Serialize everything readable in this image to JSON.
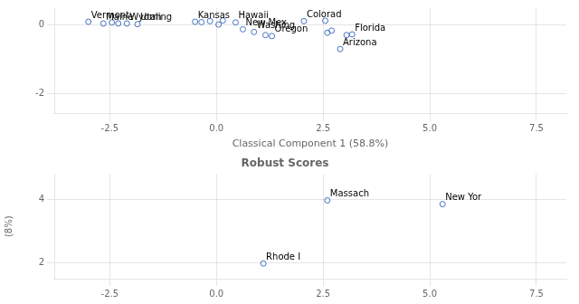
{
  "chart_data": [
    {
      "type": "scatter",
      "xlabel": "Classical Component 1 (58.8%)",
      "x": [
        -3.0,
        -2.65,
        -2.45,
        -2.3,
        -2.1,
        -1.85,
        -0.5,
        -0.15,
        0.15,
        0.45,
        0.62,
        0.88,
        1.15,
        1.3,
        2.05,
        2.6,
        2.7,
        3.05,
        3.18,
        2.9,
        2.55,
        -0.35,
        0.05
      ],
      "values": [
        0.1,
        0.05,
        0.08,
        0.05,
        0.05,
        0.03,
        0.1,
        0.12,
        0.14,
        0.08,
        -0.12,
        -0.2,
        -0.29,
        -0.32,
        0.12,
        -0.22,
        -0.16,
        -0.29,
        -0.27,
        -0.7,
        0.13,
        0.09,
        0.02
      ],
      "annotations": [
        {
          "x": -3.0,
          "y": 0.1,
          "text": "Vermont"
        },
        {
          "x": -2.65,
          "y": 0.05,
          "text": "Maine"
        },
        {
          "x": -2.1,
          "y": 0.05,
          "text": "Wyoming"
        },
        {
          "x": -1.85,
          "y": 0.03,
          "text": "Utah"
        },
        {
          "x": -0.5,
          "y": 0.1,
          "text": "Kansas"
        },
        {
          "x": 0.45,
          "y": 0.08,
          "text": "Hawaii"
        },
        {
          "x": 0.62,
          "y": -0.12,
          "text": "New Mex"
        },
        {
          "x": 0.88,
          "y": -0.2,
          "text": "Washing"
        },
        {
          "x": 1.3,
          "y": -0.32,
          "text": "Oregon"
        },
        {
          "x": 2.05,
          "y": 0.12,
          "text": "Colorad"
        },
        {
          "x": 3.18,
          "y": -0.27,
          "text": "Florida"
        },
        {
          "x": 2.9,
          "y": -0.7,
          "text": "Arizona"
        }
      ],
      "xlim": [
        -3.8,
        8.2
      ],
      "ylim": [
        -2.6,
        0.5
      ],
      "xticks": [
        -2.5,
        {
          "value": 0,
          "label": "0.0"
        },
        2.5,
        {
          "value": 5,
          "label": "5.0"
        },
        7.5
      ],
      "yticks": [
        0,
        -2
      ],
      "color": "#4472C4",
      "marker": "circle",
      "grid": true
    },
    {
      "type": "scatter",
      "title": "Robust Scores",
      "ylabel": "(8%)",
      "x": [
        2.6,
        5.3,
        1.1
      ],
      "values": [
        3.97,
        3.85,
        1.98
      ],
      "annotations": [
        {
          "x": 2.6,
          "y": 3.97,
          "text": "Massach"
        },
        {
          "x": 5.3,
          "y": 3.85,
          "text": "New Yor"
        },
        {
          "x": 1.1,
          "y": 1.98,
          "text": "Rhode I"
        }
      ],
      "xlim": [
        -3.8,
        8.2
      ],
      "ylim": [
        1.5,
        4.8
      ],
      "xticks": [
        -2.5,
        {
          "value": 0,
          "label": "0.0"
        },
        2.5,
        {
          "value": 5,
          "label": "5.0"
        },
        7.5
      ],
      "yticks": [
        2,
        4
      ],
      "color": "#4472C4",
      "marker": "circle",
      "grid": true
    }
  ]
}
